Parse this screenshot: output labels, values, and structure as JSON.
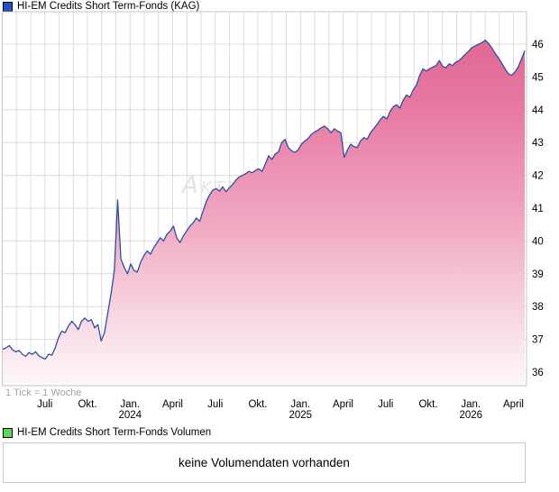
{
  "price_legend": {
    "label": "HI-EM Credits Short Term-Fonds (KAG)",
    "marker_color": "#2351c8"
  },
  "volume_legend": {
    "label": "HI-EM Credits Short Term-Fonds Volumen",
    "marker_color": "#5cd65c"
  },
  "volume_panel": {
    "message": "keine Volumendaten vorhanden"
  },
  "chart_data": {
    "type": "area",
    "title": "HI-EM Credits Short Term-Fonds (KAG)",
    "interval_note": "1 Tick = 1 Woche",
    "watermark": "Aktien",
    "grid": true,
    "legend_position": "top-left",
    "y_ticks": [
      36,
      37,
      38,
      39,
      40,
      41,
      42,
      43,
      44,
      45,
      46
    ],
    "ylim": [
      35.6,
      46.3
    ],
    "x_axis": {
      "unit_note": "1 Tick = 1 Woche",
      "ticks": [
        {
          "label": "Juli"
        },
        {
          "label": "Okt."
        },
        {
          "label": "Jan.",
          "year": "2024"
        },
        {
          "label": "April"
        },
        {
          "label": "Juli"
        },
        {
          "label": "Okt."
        },
        {
          "label": "Jan.",
          "year": "2025"
        },
        {
          "label": "April"
        },
        {
          "label": "Juli"
        },
        {
          "label": "Okt."
        },
        {
          "label": "Jan.",
          "year": "2026"
        },
        {
          "label": "April"
        }
      ]
    },
    "series": [
      {
        "name": "HI-EM Credits Short Term-Fonds (KAG)",
        "color": "#2e4f9f",
        "values": [
          36.7,
          36.74,
          36.81,
          36.68,
          36.62,
          36.66,
          36.55,
          36.48,
          36.6,
          36.54,
          36.62,
          36.5,
          36.44,
          36.4,
          36.55,
          36.52,
          36.75,
          37.05,
          37.25,
          37.2,
          37.4,
          37.55,
          37.45,
          37.3,
          37.55,
          37.65,
          37.55,
          37.6,
          37.35,
          37.45,
          36.95,
          37.2,
          37.8,
          38.4,
          39.1,
          41.25,
          39.45,
          39.2,
          39.0,
          39.3,
          39.1,
          39.05,
          39.35,
          39.55,
          39.7,
          39.6,
          39.8,
          39.95,
          40.1,
          40.0,
          40.2,
          40.3,
          40.45,
          40.1,
          39.95,
          40.15,
          40.3,
          40.45,
          40.55,
          40.7,
          40.6,
          40.9,
          41.2,
          41.4,
          41.55,
          41.6,
          41.52,
          41.65,
          41.5,
          41.62,
          41.72,
          41.85,
          41.95,
          42.0,
          42.05,
          42.12,
          42.08,
          42.15,
          42.2,
          42.12,
          42.35,
          42.6,
          42.48,
          42.65,
          42.72,
          43.0,
          43.1,
          42.85,
          42.75,
          42.7,
          42.78,
          42.95,
          43.05,
          43.12,
          43.25,
          43.32,
          43.38,
          43.45,
          43.5,
          43.42,
          43.3,
          43.42,
          43.35,
          43.3,
          42.55,
          42.78,
          42.95,
          42.88,
          42.85,
          43.05,
          43.15,
          43.1,
          43.3,
          43.42,
          43.55,
          43.7,
          43.8,
          43.72,
          43.95,
          44.1,
          44.15,
          44.05,
          44.3,
          44.45,
          44.38,
          44.6,
          44.75,
          45.05,
          45.25,
          45.18,
          45.25,
          45.3,
          45.35,
          45.5,
          45.32,
          45.28,
          45.4,
          45.35,
          45.45,
          45.5,
          45.6,
          45.7,
          45.8,
          45.9,
          45.95,
          46.0,
          46.05,
          46.12,
          46.02,
          45.88,
          45.72,
          45.58,
          45.42,
          45.25,
          45.1,
          45.05,
          45.15,
          45.3,
          45.55,
          45.8
        ]
      }
    ],
    "colors": {
      "grid": "#dcdcdc",
      "border": "#c6c6c6",
      "watermark": "#e8e3dd",
      "axis_text": "#000000",
      "note_text": "#a3a3ab",
      "area_gradient": [
        {
          "offset": 0.0,
          "color": "#dc5f8d"
        },
        {
          "offset": 0.28,
          "color": "#e87ca4"
        },
        {
          "offset": 0.55,
          "color": "#efa6c1"
        },
        {
          "offset": 0.8,
          "color": "#f7d4e0"
        },
        {
          "offset": 1.0,
          "color": "#fdf8fa"
        }
      ]
    }
  }
}
